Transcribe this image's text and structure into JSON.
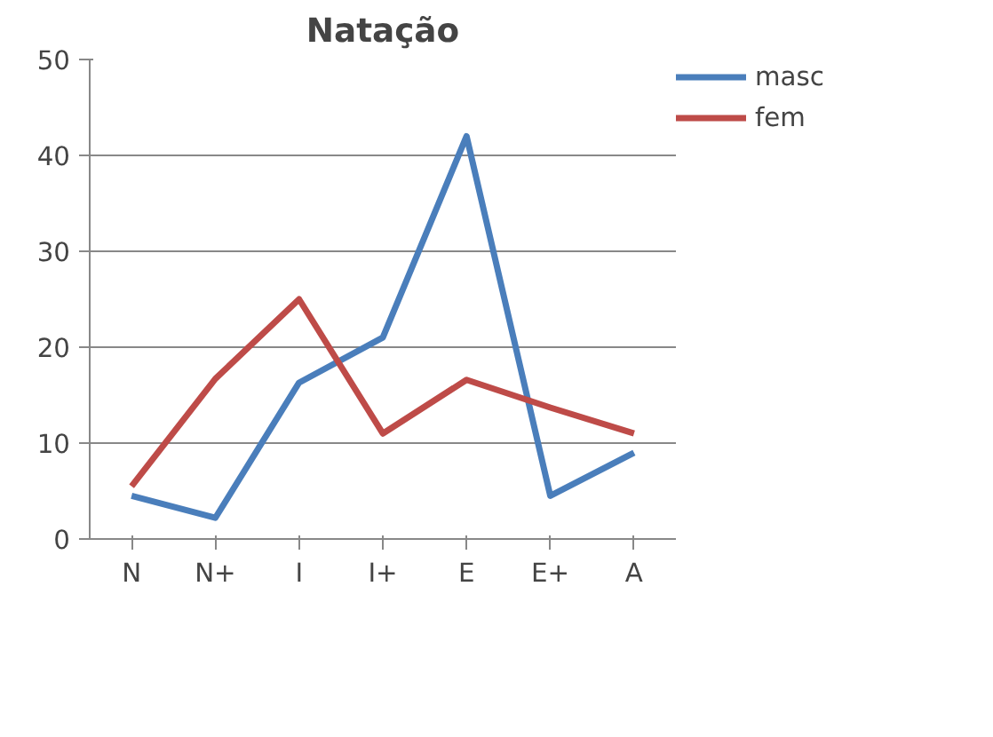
{
  "chart_data": {
    "type": "line",
    "title": "Natação",
    "categories": [
      "N",
      "N+",
      "I",
      "I+",
      "E",
      "E+",
      "A"
    ],
    "series": [
      {
        "name": "masc",
        "color": "#4a7ebb",
        "values": [
          4.5,
          2.2,
          16.3,
          21,
          42,
          4.5,
          9
        ]
      },
      {
        "name": "fem",
        "color": "#be4b48",
        "values": [
          5.5,
          16.7,
          25,
          11,
          16.6,
          13.7,
          11
        ]
      }
    ],
    "ylim": [
      0,
      50
    ],
    "yticks": [
      0,
      10,
      20,
      30,
      40,
      50
    ],
    "grid": "y",
    "legend": "right",
    "marker": "none",
    "line_style": "solid"
  }
}
